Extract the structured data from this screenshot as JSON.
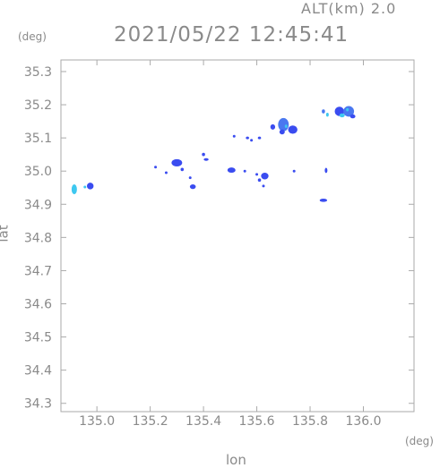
{
  "header": {
    "alt_label": "ALT(km) 2.0",
    "datetime": "2021/05/22 12:45:41"
  },
  "chart_data": {
    "type": "heatmap",
    "title": "2021/05/22 12:45:41",
    "xlabel": "lon",
    "ylabel": "lat",
    "x_unit": "(deg)",
    "y_unit": "(deg)",
    "xlim": [
      134.865,
      136.19
    ],
    "ylim": [
      34.275,
      35.335
    ],
    "xticks": [
      135.0,
      135.2,
      135.4,
      135.6,
      135.8,
      136.0
    ],
    "xtick_labels": [
      "135.0",
      "135.2",
      "135.4",
      "135.6",
      "135.8",
      "136.0"
    ],
    "yticks": [
      34.3,
      34.4,
      34.5,
      34.6,
      34.7,
      34.8,
      34.9,
      35.0,
      35.1,
      35.2,
      35.3
    ],
    "ytick_labels": [
      "34.3",
      "34.4",
      "34.5",
      "34.6",
      "34.7",
      "34.8",
      "34.9",
      "35.0",
      "35.1",
      "35.2",
      "35.3"
    ],
    "grid": false,
    "colors": {
      "low": "#3a4cf0",
      "mid": "#4a78f0",
      "high": "#3ec8f0",
      "axis": "#aaaaaa"
    },
    "echoes": [
      {
        "lon": 134.915,
        "lat": 34.945,
        "w": 0.02,
        "h": 0.03,
        "level": "high"
      },
      {
        "lon": 134.975,
        "lat": 34.955,
        "w": 0.025,
        "h": 0.02,
        "level": "low"
      },
      {
        "lon": 134.955,
        "lat": 34.952,
        "w": 0.01,
        "h": 0.008,
        "level": "high"
      },
      {
        "lon": 135.22,
        "lat": 35.012,
        "w": 0.01,
        "h": 0.008,
        "level": "low"
      },
      {
        "lon": 135.3,
        "lat": 35.025,
        "w": 0.04,
        "h": 0.022,
        "level": "low"
      },
      {
        "lon": 135.32,
        "lat": 35.005,
        "w": 0.012,
        "h": 0.01,
        "level": "low"
      },
      {
        "lon": 135.26,
        "lat": 34.995,
        "w": 0.008,
        "h": 0.008,
        "level": "low"
      },
      {
        "lon": 135.35,
        "lat": 34.98,
        "w": 0.008,
        "h": 0.008,
        "level": "low"
      },
      {
        "lon": 135.36,
        "lat": 34.953,
        "w": 0.022,
        "h": 0.014,
        "level": "low"
      },
      {
        "lon": 135.4,
        "lat": 35.05,
        "w": 0.012,
        "h": 0.01,
        "level": "low"
      },
      {
        "lon": 135.41,
        "lat": 35.035,
        "w": 0.018,
        "h": 0.008,
        "level": "low"
      },
      {
        "lon": 135.505,
        "lat": 35.003,
        "w": 0.03,
        "h": 0.016,
        "level": "low"
      },
      {
        "lon": 135.515,
        "lat": 35.105,
        "w": 0.008,
        "h": 0.008,
        "level": "low"
      },
      {
        "lon": 135.565,
        "lat": 35.1,
        "w": 0.012,
        "h": 0.008,
        "level": "low"
      },
      {
        "lon": 135.58,
        "lat": 35.093,
        "w": 0.008,
        "h": 0.007,
        "level": "low"
      },
      {
        "lon": 135.61,
        "lat": 35.1,
        "w": 0.012,
        "h": 0.008,
        "level": "low"
      },
      {
        "lon": 135.555,
        "lat": 35.0,
        "w": 0.008,
        "h": 0.008,
        "level": "low"
      },
      {
        "lon": 135.6,
        "lat": 34.99,
        "w": 0.008,
        "h": 0.008,
        "level": "low"
      },
      {
        "lon": 135.63,
        "lat": 34.985,
        "w": 0.028,
        "h": 0.02,
        "level": "low"
      },
      {
        "lon": 135.61,
        "lat": 34.973,
        "w": 0.012,
        "h": 0.01,
        "level": "low"
      },
      {
        "lon": 135.625,
        "lat": 34.955,
        "w": 0.006,
        "h": 0.006,
        "level": "low"
      },
      {
        "lon": 135.66,
        "lat": 35.133,
        "w": 0.018,
        "h": 0.016,
        "level": "low"
      },
      {
        "lon": 135.7,
        "lat": 35.14,
        "w": 0.04,
        "h": 0.04,
        "level": "mid"
      },
      {
        "lon": 135.735,
        "lat": 35.125,
        "w": 0.035,
        "h": 0.025,
        "level": "low"
      },
      {
        "lon": 135.695,
        "lat": 35.118,
        "w": 0.02,
        "h": 0.015,
        "level": "low"
      },
      {
        "lon": 135.71,
        "lat": 35.135,
        "w": 0.01,
        "h": 0.01,
        "level": "high"
      },
      {
        "lon": 135.74,
        "lat": 35.0,
        "w": 0.006,
        "h": 0.006,
        "level": "low"
      },
      {
        "lon": 135.85,
        "lat": 35.18,
        "w": 0.012,
        "h": 0.012,
        "level": "mid"
      },
      {
        "lon": 135.865,
        "lat": 35.17,
        "w": 0.01,
        "h": 0.012,
        "level": "high"
      },
      {
        "lon": 135.86,
        "lat": 35.002,
        "w": 0.008,
        "h": 0.016,
        "level": "low"
      },
      {
        "lon": 135.85,
        "lat": 34.912,
        "w": 0.028,
        "h": 0.01,
        "level": "low"
      },
      {
        "lon": 135.91,
        "lat": 35.18,
        "w": 0.035,
        "h": 0.028,
        "level": "low"
      },
      {
        "lon": 135.945,
        "lat": 35.18,
        "w": 0.04,
        "h": 0.032,
        "level": "mid"
      },
      {
        "lon": 135.92,
        "lat": 35.168,
        "w": 0.02,
        "h": 0.012,
        "level": "high"
      },
      {
        "lon": 135.96,
        "lat": 35.165,
        "w": 0.02,
        "h": 0.012,
        "level": "low"
      },
      {
        "lon": 135.94,
        "lat": 35.185,
        "w": 0.01,
        "h": 0.01,
        "level": "high"
      }
    ]
  }
}
